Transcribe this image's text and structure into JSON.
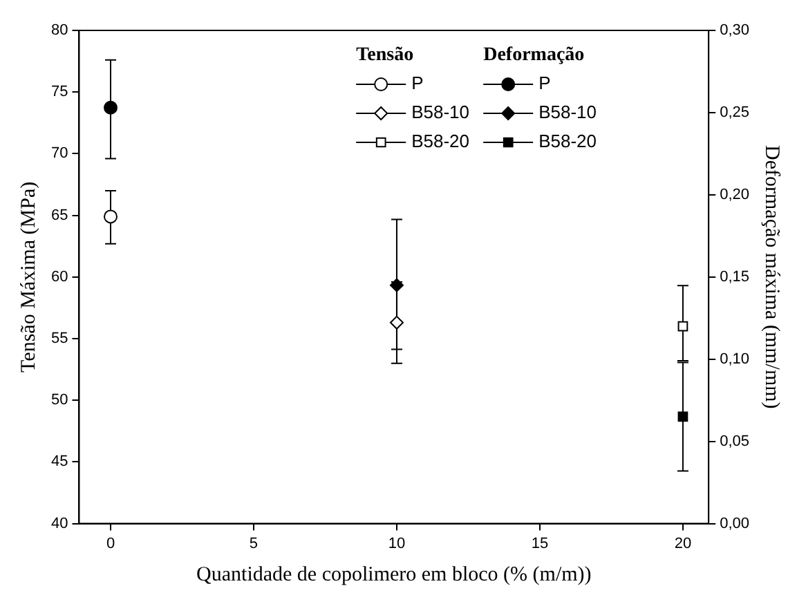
{
  "chart_data": {
    "type": "scatter",
    "xlabel": "Quantidade de copolimero em bloco (% (m/m))",
    "ylabel": "Tensão Máxima (MPa)",
    "y2label": "Deformação máxima (mm/mm)",
    "xlim": [
      -1.1,
      20.9
    ],
    "xticks": [
      0,
      5,
      10,
      15,
      20
    ],
    "ylim": [
      40,
      80
    ],
    "yticks": [
      40,
      45,
      50,
      55,
      60,
      65,
      70,
      75,
      80
    ],
    "y2lim": [
      0,
      0.3
    ],
    "y2ticks": [
      {
        "value": 0,
        "label": "0,00"
      },
      {
        "value": 0.05,
        "label": "0,05"
      },
      {
        "value": 0.1,
        "label": "0,10"
      },
      {
        "value": 0.15,
        "label": "0,15"
      },
      {
        "value": 0.2,
        "label": "0,20"
      },
      {
        "value": 0.25,
        "label": "0,25"
      },
      {
        "value": 0.3,
        "label": "0,30"
      }
    ],
    "series": [
      {
        "name": "P",
        "color": "#ffffff",
        "marker": "circle",
        "x": [
          0
        ],
        "values": [
          64.9
        ],
        "errors": [
          [
            62.7,
            67.0
          ]
        ]
      },
      {
        "name": "B58-10",
        "color": "#ffffff",
        "marker": "diamond",
        "x": [
          10
        ],
        "values": [
          56.3
        ],
        "errors": [
          [
            53.0,
            59.6
          ]
        ]
      },
      {
        "name": "B58-20",
        "color": "#ffffff",
        "marker": "square",
        "x": [
          20
        ],
        "values": [
          56.0
        ],
        "errors": [
          [
            53.2,
            59.3
          ]
        ]
      },
      {
        "name": "P",
        "color": "#000000",
        "marker": "circle",
        "axis": "y2",
        "x": [
          0
        ],
        "values": [
          0.253
        ],
        "errors": [
          [
            0.222,
            0.282
          ]
        ]
      },
      {
        "name": "B58-10",
        "color": "#000000",
        "marker": "diamond",
        "axis": "y2",
        "x": [
          10
        ],
        "values": [
          0.145
        ],
        "errors": [
          [
            0.106,
            0.185
          ]
        ]
      },
      {
        "name": "B58-20",
        "color": "#000000",
        "marker": "square",
        "axis": "y2",
        "x": [
          20
        ],
        "values": [
          0.065
        ],
        "errors": [
          [
            0.032,
            0.098
          ]
        ]
      }
    ],
    "annotations": [
      "Tensão",
      "Deformação"
    ],
    "legend": "top right",
    "grid": false
  }
}
